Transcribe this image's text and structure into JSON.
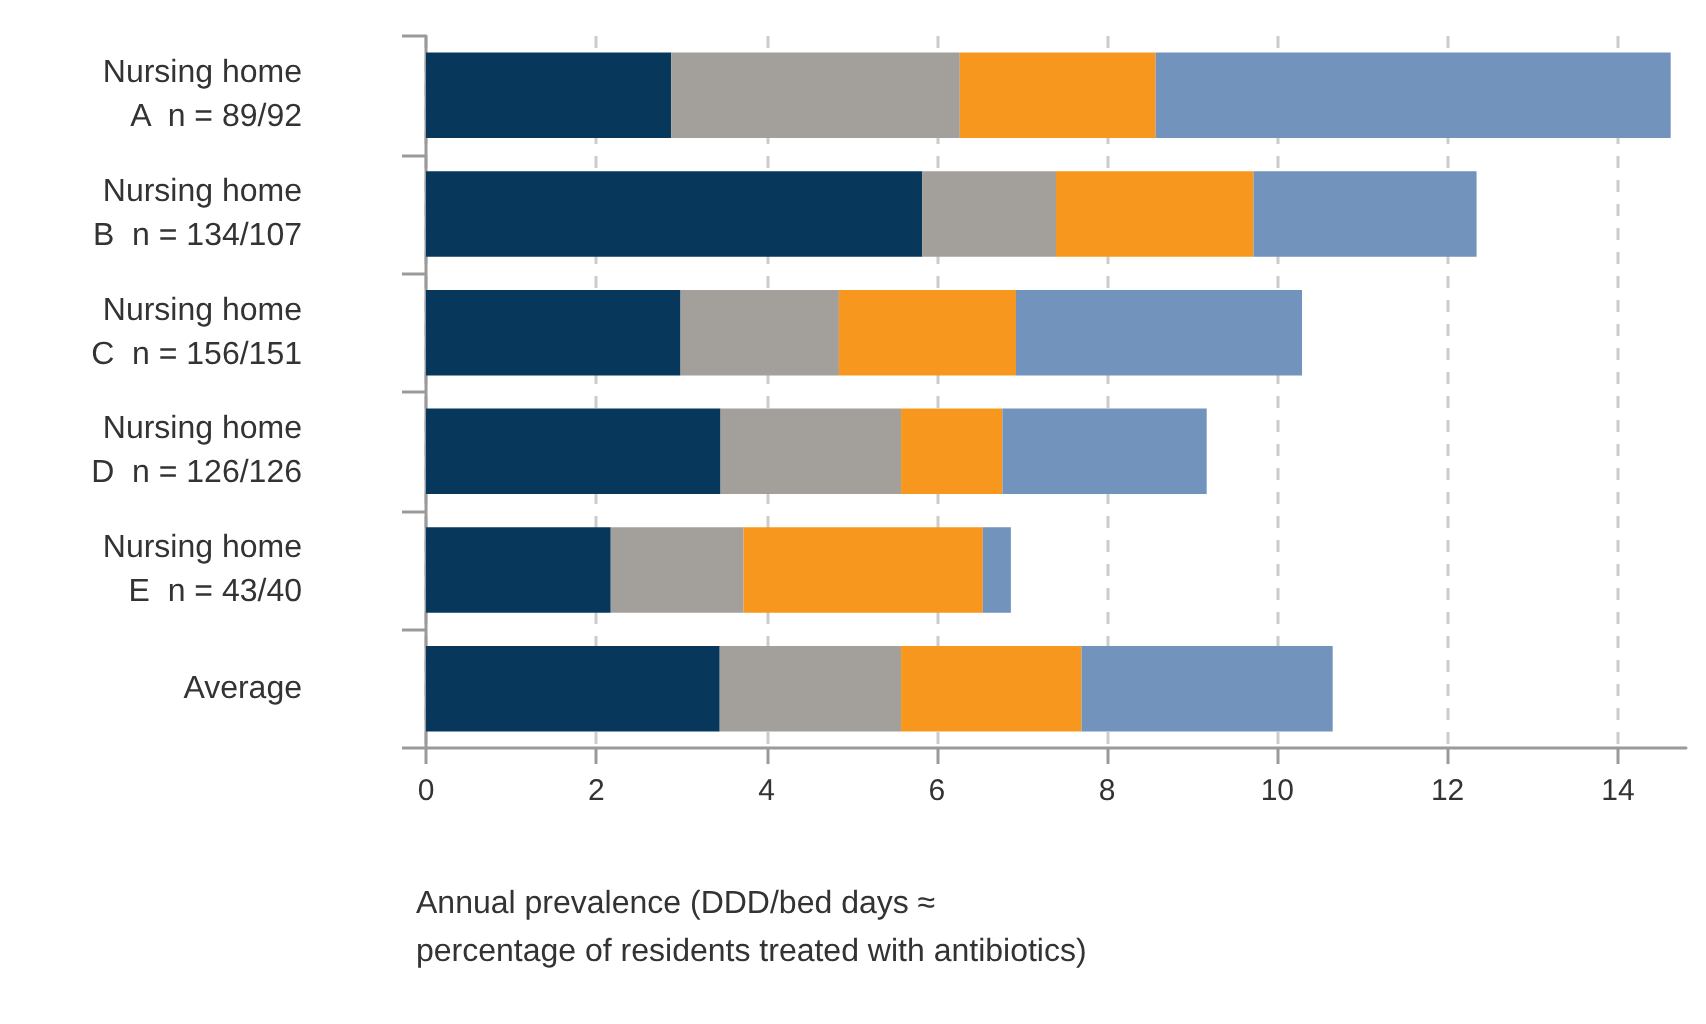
{
  "chart_data": {
    "type": "bar",
    "orientation": "horizontal",
    "stacked": true,
    "categories": [
      "Nursing home\nA  n = 89/92",
      "Nursing home\nB  n = 134/107",
      "Nursing home\nC  n = 156/151",
      "Nursing home\nD  n = 126/126",
      "Nursing home\nE  n = 43/40",
      "Average"
    ],
    "series": [
      {
        "color": "#08375c",
        "values": [
          2.88,
          5.83,
          2.99,
          3.46,
          2.17,
          3.45
        ]
      },
      {
        "color": "#a39f9b",
        "values": [
          3.39,
          1.57,
          1.86,
          2.12,
          1.56,
          2.13
        ]
      },
      {
        "color": "#f7971e",
        "values": [
          2.3,
          2.32,
          2.08,
          1.19,
          2.81,
          2.12
        ]
      },
      {
        "color": "#7293bb",
        "values": [
          6.05,
          2.62,
          3.36,
          2.4,
          0.33,
          2.95
        ]
      }
    ],
    "xlabel": "Annual prevalence (DDD/bed days ≈\npercentage of residents treated with antibiotics)",
    "xlim": [
      0,
      14.8
    ],
    "xticks": [
      0,
      2,
      4,
      6,
      8,
      10,
      12,
      14
    ],
    "grid": "x"
  }
}
